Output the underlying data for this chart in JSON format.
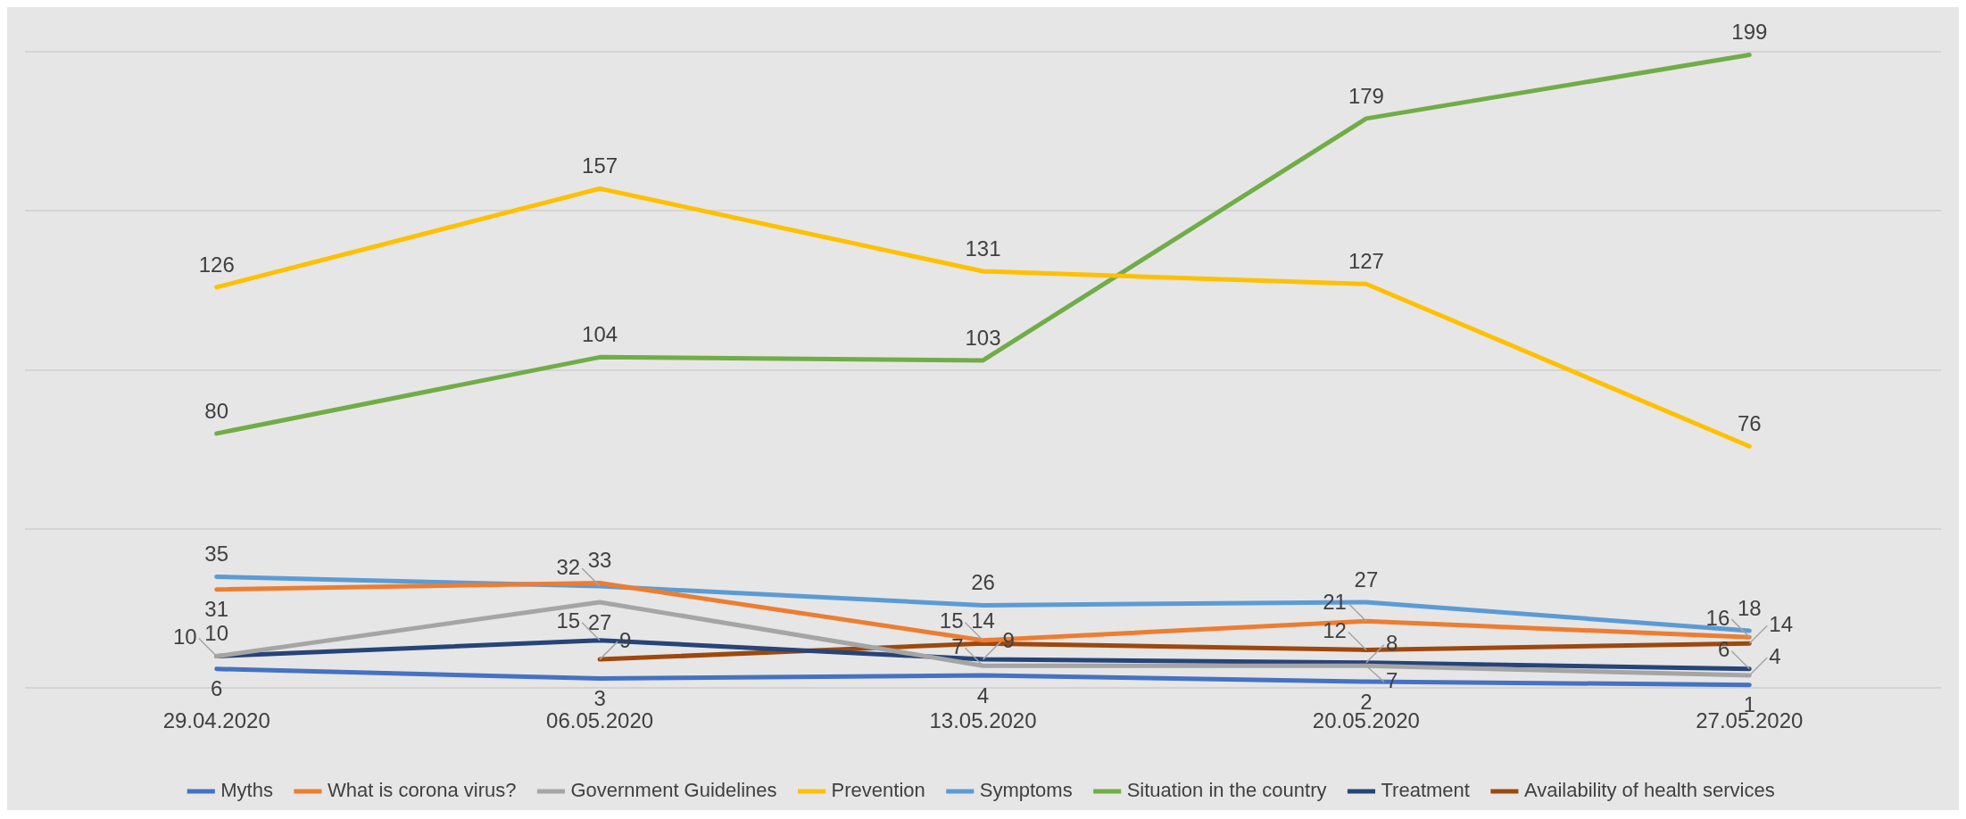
{
  "chart_data": {
    "type": "line",
    "categories": [
      "29.04.2020",
      "06.05.2020",
      "13.05.2020",
      "20.05.2020",
      "27.05.2020"
    ],
    "series": [
      {
        "name": "Myths",
        "color": "#4472c4",
        "values": [
          6,
          3,
          4,
          2,
          1
        ]
      },
      {
        "name": "What is corona virus?",
        "color": "#ed7d31",
        "values": [
          31,
          33,
          15,
          21,
          16
        ]
      },
      {
        "name": "Government Guidelines",
        "color": "#a5a5a5",
        "values": [
          10,
          27,
          7,
          7,
          4
        ]
      },
      {
        "name": "Prevention",
        "color": "#ffc000",
        "values": [
          126,
          157,
          131,
          127,
          76
        ]
      },
      {
        "name": "Symptoms",
        "color": "#5b9bd5",
        "values": [
          35,
          32,
          26,
          27,
          18
        ]
      },
      {
        "name": "Situation in the country",
        "color": "#70ad47",
        "values": [
          80,
          104,
          103,
          179,
          199
        ]
      },
      {
        "name": "Treatment",
        "color": "#264478",
        "values": [
          10,
          15,
          9,
          8,
          6
        ]
      },
      {
        "name": "Availability of health services",
        "color": "#9e480e",
        "values": [
          null,
          9,
          14,
          12,
          14
        ]
      }
    ],
    "ylim": [
      0,
      200
    ],
    "yticks": [
      {
        "value": 0,
        "label": null
      },
      {
        "value": 50,
        "label": null
      },
      {
        "value": 100,
        "label": null
      },
      {
        "value": 150,
        "label": null
      },
      {
        "value": 200,
        "label": null
      }
    ],
    "tick_labels": "x",
    "grid": "y",
    "legend": "bottom",
    "data_labels": true,
    "marker": "none",
    "line_style": "solid"
  }
}
